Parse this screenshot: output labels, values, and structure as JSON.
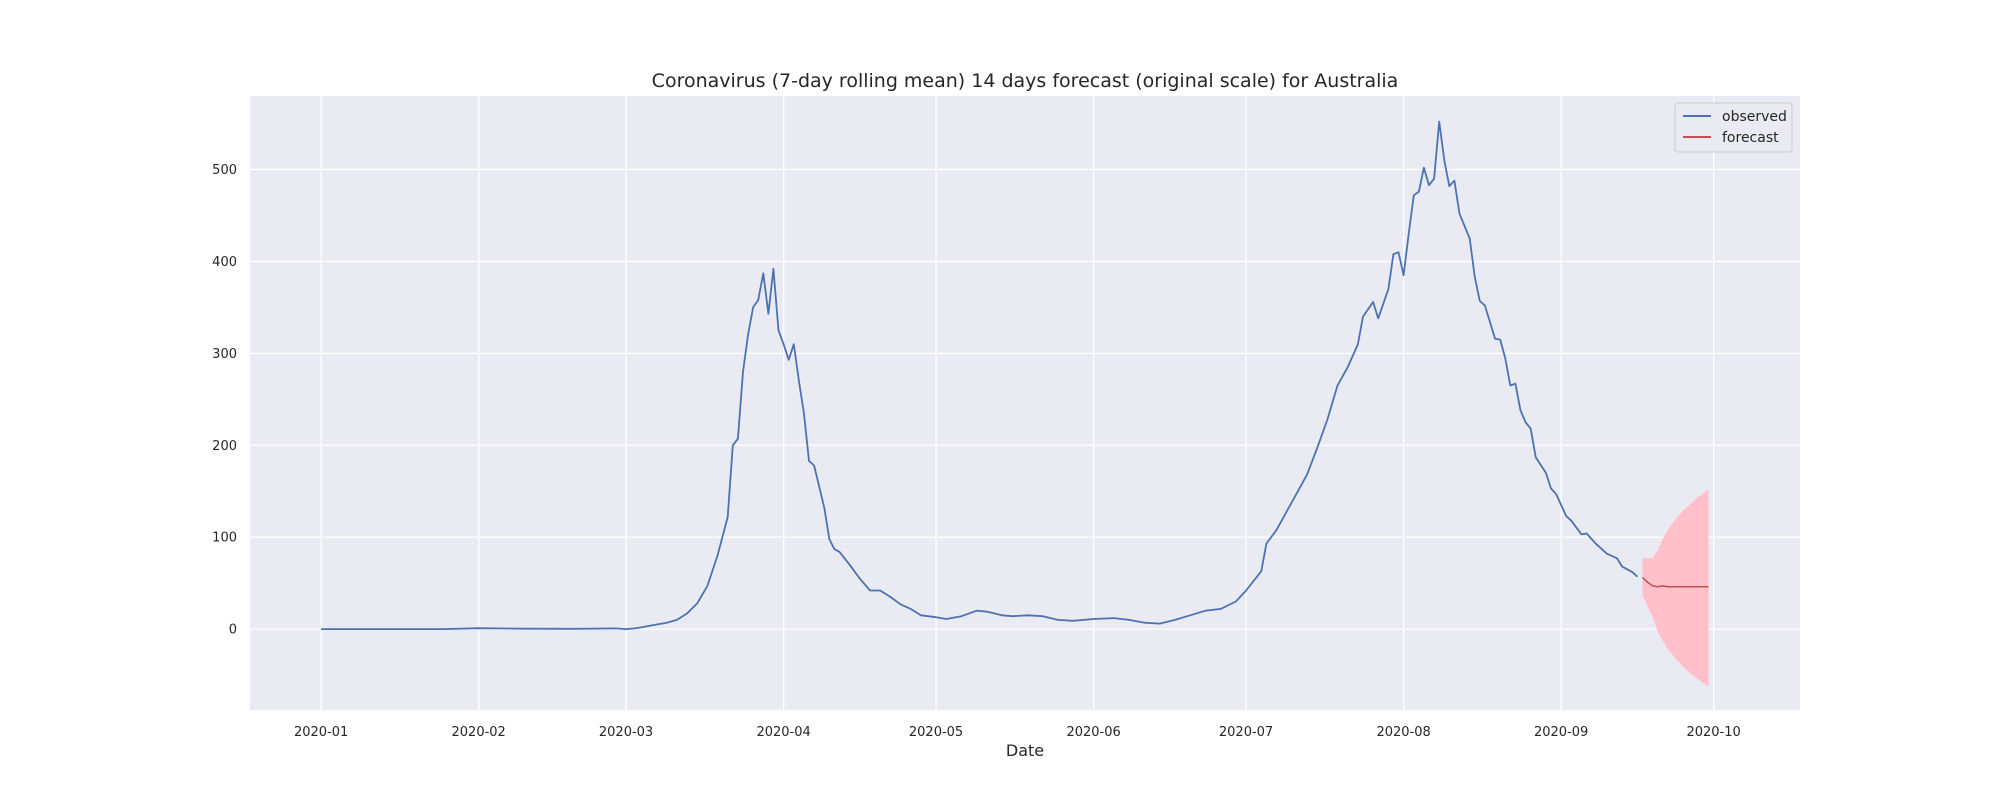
{
  "chart_data": {
    "type": "line",
    "title": "Coronavirus (7-day rolling mean) 14 days forecast (original scale) for Australia",
    "xlabel": "Date",
    "ylabel": "",
    "xlim": [
      "2019-12-18",
      "2020-10-18"
    ],
    "ylim": [
      -88,
      580
    ],
    "x_ticks": [
      "2020-01",
      "2020-02",
      "2020-03",
      "2020-04",
      "2020-05",
      "2020-06",
      "2020-07",
      "2020-08",
      "2020-09",
      "2020-10"
    ],
    "y_ticks": [
      0,
      100,
      200,
      300,
      400,
      500
    ],
    "grid": true,
    "legend": {
      "position": "top-right",
      "entries": [
        "observed",
        "forecast"
      ]
    },
    "colors": {
      "background": "#eaeaf2",
      "grid": "#ffffff",
      "observed": "#4c72b0",
      "forecast": "#c44e52",
      "interval": "#ffc0cb"
    },
    "series": [
      {
        "name": "observed",
        "points": [
          [
            "2020-01-01",
            0
          ],
          [
            "2020-01-10",
            0
          ],
          [
            "2020-01-20",
            0
          ],
          [
            "2020-01-25",
            0
          ],
          [
            "2020-02-01",
            1
          ],
          [
            "2020-02-10",
            0.5
          ],
          [
            "2020-02-20",
            0.3
          ],
          [
            "2020-02-28",
            0.8
          ],
          [
            "2020-03-01",
            0
          ],
          [
            "2020-03-03",
            1
          ],
          [
            "2020-03-05",
            3
          ],
          [
            "2020-03-07",
            5
          ],
          [
            "2020-03-09",
            7
          ],
          [
            "2020-03-11",
            10
          ],
          [
            "2020-03-13",
            17
          ],
          [
            "2020-03-15",
            28
          ],
          [
            "2020-03-17",
            47
          ],
          [
            "2020-03-19",
            80
          ],
          [
            "2020-03-21",
            122
          ],
          [
            "2020-03-22",
            200
          ],
          [
            "2020-03-23",
            207
          ],
          [
            "2020-03-24",
            280
          ],
          [
            "2020-03-25",
            320
          ],
          [
            "2020-03-26",
            350
          ],
          [
            "2020-03-27",
            358
          ],
          [
            "2020-03-28",
            387
          ],
          [
            "2020-03-29",
            343
          ],
          [
            "2020-03-30",
            392
          ],
          [
            "2020-03-31",
            325
          ],
          [
            "2020-04-01",
            310
          ],
          [
            "2020-04-02",
            293
          ],
          [
            "2020-04-03",
            310
          ],
          [
            "2020-04-04",
            270
          ],
          [
            "2020-04-05",
            235
          ],
          [
            "2020-04-06",
            183
          ],
          [
            "2020-04-07",
            178
          ],
          [
            "2020-04-08",
            155
          ],
          [
            "2020-04-09",
            132
          ],
          [
            "2020-04-10",
            98
          ],
          [
            "2020-04-11",
            87
          ],
          [
            "2020-04-12",
            84
          ],
          [
            "2020-04-14",
            70
          ],
          [
            "2020-04-16",
            55
          ],
          [
            "2020-04-18",
            42
          ],
          [
            "2020-04-20",
            42
          ],
          [
            "2020-04-22",
            35
          ],
          [
            "2020-04-24",
            27
          ],
          [
            "2020-04-26",
            22
          ],
          [
            "2020-04-28",
            15
          ],
          [
            "2020-05-01",
            13
          ],
          [
            "2020-05-03",
            11
          ],
          [
            "2020-05-06",
            14
          ],
          [
            "2020-05-09",
            20
          ],
          [
            "2020-05-11",
            19
          ],
          [
            "2020-05-14",
            15
          ],
          [
            "2020-05-16",
            14
          ],
          [
            "2020-05-19",
            15
          ],
          [
            "2020-05-22",
            14
          ],
          [
            "2020-05-25",
            10
          ],
          [
            "2020-05-28",
            9
          ],
          [
            "2020-06-01",
            11
          ],
          [
            "2020-06-05",
            12
          ],
          [
            "2020-06-08",
            10
          ],
          [
            "2020-06-11",
            7
          ],
          [
            "2020-06-14",
            6
          ],
          [
            "2020-06-17",
            10
          ],
          [
            "2020-06-20",
            15
          ],
          [
            "2020-06-23",
            20
          ],
          [
            "2020-06-26",
            22
          ],
          [
            "2020-06-29",
            30
          ],
          [
            "2020-07-01",
            42
          ],
          [
            "2020-07-04",
            63
          ],
          [
            "2020-07-05",
            93
          ],
          [
            "2020-07-07",
            108
          ],
          [
            "2020-07-09",
            128
          ],
          [
            "2020-07-11",
            148
          ],
          [
            "2020-07-13",
            168
          ],
          [
            "2020-07-15",
            197
          ],
          [
            "2020-07-17",
            228
          ],
          [
            "2020-07-19",
            265
          ],
          [
            "2020-07-21",
            285
          ],
          [
            "2020-07-23",
            310
          ],
          [
            "2020-07-24",
            340
          ],
          [
            "2020-07-26",
            356
          ],
          [
            "2020-07-27",
            338
          ],
          [
            "2020-07-29",
            370
          ],
          [
            "2020-07-30",
            408
          ],
          [
            "2020-07-31",
            410
          ],
          [
            "2020-08-01",
            385
          ],
          [
            "2020-08-02",
            430
          ],
          [
            "2020-08-03",
            472
          ],
          [
            "2020-08-04",
            476
          ],
          [
            "2020-08-05",
            502
          ],
          [
            "2020-08-06",
            483
          ],
          [
            "2020-08-07",
            490
          ],
          [
            "2020-08-08",
            552
          ],
          [
            "2020-08-09",
            510
          ],
          [
            "2020-08-10",
            482
          ],
          [
            "2020-08-11",
            488
          ],
          [
            "2020-08-12",
            452
          ],
          [
            "2020-08-14",
            425
          ],
          [
            "2020-08-15",
            383
          ],
          [
            "2020-08-16",
            357
          ],
          [
            "2020-08-17",
            352
          ],
          [
            "2020-08-19",
            316
          ],
          [
            "2020-08-20",
            315
          ],
          [
            "2020-08-21",
            295
          ],
          [
            "2020-08-22",
            265
          ],
          [
            "2020-08-23",
            267
          ],
          [
            "2020-08-24",
            238
          ],
          [
            "2020-08-25",
            225
          ],
          [
            "2020-08-26",
            218
          ],
          [
            "2020-08-27",
            187
          ],
          [
            "2020-08-29",
            170
          ],
          [
            "2020-08-30",
            153
          ],
          [
            "2020-08-31",
            147
          ],
          [
            "2020-09-02",
            123
          ],
          [
            "2020-09-03",
            118
          ],
          [
            "2020-09-05",
            103
          ],
          [
            "2020-09-06",
            104
          ],
          [
            "2020-09-08",
            92
          ],
          [
            "2020-09-10",
            82
          ],
          [
            "2020-09-12",
            77
          ],
          [
            "2020-09-13",
            68
          ],
          [
            "2020-09-15",
            62
          ],
          [
            "2020-09-16",
            57
          ]
        ]
      },
      {
        "name": "forecast",
        "points": [
          [
            "2020-09-17",
            56
          ],
          [
            "2020-09-18",
            51
          ],
          [
            "2020-09-19",
            47
          ],
          [
            "2020-09-20",
            46
          ],
          [
            "2020-09-21",
            47
          ],
          [
            "2020-09-22",
            46
          ],
          [
            "2020-09-23",
            46
          ],
          [
            "2020-09-24",
            46
          ],
          [
            "2020-09-25",
            46
          ],
          [
            "2020-09-26",
            46
          ],
          [
            "2020-09-27",
            46
          ],
          [
            "2020-09-28",
            46
          ],
          [
            "2020-09-29",
            46
          ],
          [
            "2020-09-30",
            46
          ]
        ]
      }
    ],
    "interval": {
      "x": [
        "2020-09-17",
        "2020-09-18",
        "2020-09-19",
        "2020-09-20",
        "2020-09-21",
        "2020-09-22",
        "2020-09-23",
        "2020-09-24",
        "2020-09-25",
        "2020-09-26",
        "2020-09-27",
        "2020-09-28",
        "2020-09-29",
        "2020-09-30"
      ],
      "lower": [
        37,
        25,
        13,
        -3,
        -13,
        -22,
        -29,
        -35,
        -41,
        -46,
        -51,
        -55,
        -59,
        -62
      ],
      "upper": [
        77,
        77,
        77,
        86,
        98,
        108,
        116,
        123,
        129,
        134,
        139,
        144,
        148,
        152
      ]
    }
  }
}
